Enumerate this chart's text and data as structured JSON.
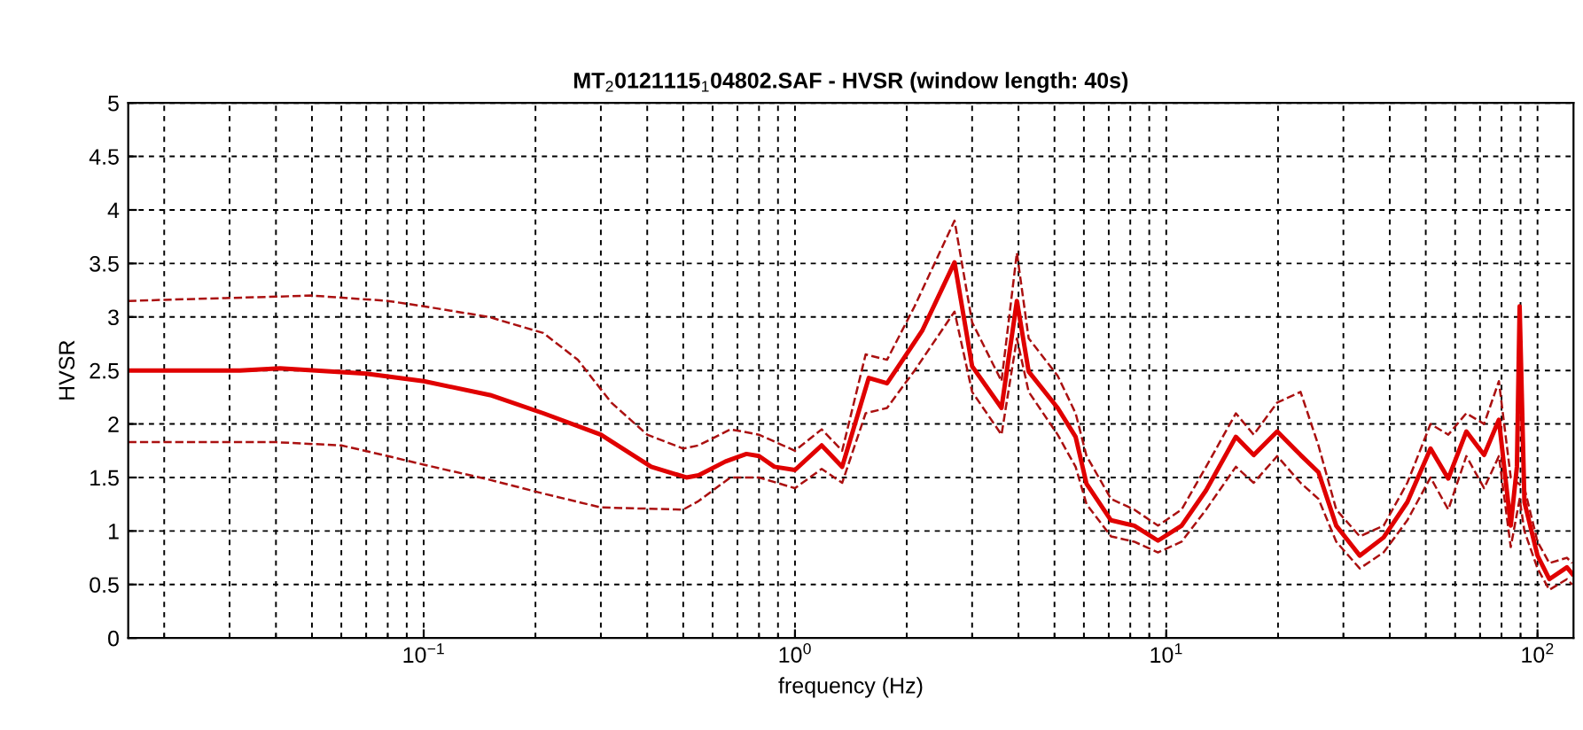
{
  "chart_data": {
    "type": "line",
    "title": "MT$_{2}$0121115$_{1}$04802.SAF - HVSR (window length: 40s)",
    "xlabel": "frequency (Hz)",
    "ylabel": "HVSR",
    "log": "x",
    "xlim": [
      0.016,
      125
    ],
    "xticks": [
      {
        "value": 0.1,
        "label": "10$^{−1}$"
      },
      {
        "value": 1,
        "label": "10$^{0}$"
      },
      {
        "value": 10,
        "label": "10$^{1}$"
      },
      {
        "value": 100,
        "label": "10$^{2}$"
      }
    ],
    "ylim": [
      0,
      5
    ],
    "yticks": [
      0,
      0.5,
      1,
      1.5,
      2,
      2.5,
      3,
      3.5,
      4,
      4.5,
      5
    ],
    "grid": true,
    "marker": "none",
    "series": [
      {
        "color": "#aa1010",
        "line_style": "dashed",
        "x": [
          0.016,
          0.05,
          0.08,
          0.1,
          0.15,
          0.21,
          0.26,
          0.32,
          0.4,
          0.5,
          0.55,
          0.67,
          0.8,
          1.0,
          1.18,
          1.34,
          1.55,
          1.77,
          2.1,
          2.69,
          3.0,
          3.6,
          3.96,
          4.26,
          5.1,
          5.7,
          6.1,
          7.1,
          8.2,
          9.5,
          11,
          12.8,
          15.4,
          17.2,
          19.9,
          23,
          25.7,
          28.7,
          33.2,
          38.5,
          44.6,
          51.5,
          57.5,
          64.3,
          71.8,
          78.7,
          84.7,
          92.2,
          100,
          107.6,
          120,
          124
        ],
        "values": [
          3.15,
          3.2,
          3.15,
          3.1,
          3.0,
          2.85,
          2.6,
          2.2,
          1.9,
          1.77,
          1.8,
          1.95,
          1.9,
          1.75,
          1.95,
          1.75,
          2.65,
          2.6,
          3.1,
          3.9,
          2.95,
          2.4,
          3.6,
          2.8,
          2.45,
          2.1,
          1.7,
          1.3,
          1.2,
          1.05,
          1.2,
          1.6,
          2.1,
          1.9,
          2.2,
          2.3,
          1.8,
          1.2,
          0.95,
          1.05,
          1.45,
          2.0,
          1.9,
          2.1,
          2.0,
          2.4,
          1.5,
          1.4,
          0.9,
          0.7,
          0.75,
          0.7
        ]
      },
      {
        "color": "#aa1010",
        "line_style": "dashed",
        "x": [
          0.016,
          0.04,
          0.06,
          0.08,
          0.1,
          0.15,
          0.21,
          0.3,
          0.5,
          0.55,
          0.67,
          0.8,
          1.0,
          1.18,
          1.34,
          1.55,
          1.77,
          2.1,
          2.69,
          3.0,
          3.6,
          3.96,
          4.26,
          5.1,
          5.7,
          6.1,
          7.1,
          8.2,
          9.5,
          11,
          12.8,
          15.4,
          17.2,
          19.9,
          23,
          25.7,
          28.7,
          33.2,
          38.5,
          44.6,
          51.5,
          57.5,
          64.3,
          71.8,
          78.7,
          84.7,
          89.5,
          92.2,
          100,
          107.6,
          120,
          124
        ],
        "values": [
          1.83,
          1.83,
          1.8,
          1.7,
          1.62,
          1.48,
          1.35,
          1.22,
          1.2,
          1.28,
          1.5,
          1.5,
          1.4,
          1.58,
          1.45,
          2.1,
          2.15,
          2.5,
          3.05,
          2.3,
          1.9,
          2.8,
          2.3,
          1.9,
          1.6,
          1.25,
          0.95,
          0.9,
          0.8,
          0.9,
          1.2,
          1.6,
          1.45,
          1.7,
          1.45,
          1.3,
          0.9,
          0.65,
          0.8,
          1.1,
          1.5,
          1.2,
          1.7,
          1.4,
          1.7,
          0.85,
          1.3,
          1.0,
          0.65,
          0.45,
          0.55,
          0.5
        ]
      },
      {
        "color": "#e00000",
        "line_style": "solid",
        "x": [
          0.016,
          0.032,
          0.041,
          0.07,
          0.1,
          0.151,
          0.21,
          0.3,
          0.41,
          0.51,
          0.55,
          0.65,
          0.74,
          0.8,
          0.88,
          1.0,
          1.18,
          1.34,
          1.58,
          1.77,
          2.2,
          2.69,
          3.0,
          3.6,
          3.96,
          4.26,
          5.1,
          5.7,
          6.1,
          7.1,
          8.2,
          9.5,
          11.0,
          12.8,
          15.4,
          17.2,
          19.9,
          23,
          25.7,
          28.7,
          33.2,
          38.5,
          44.6,
          51.5,
          57.5,
          64.3,
          71.8,
          78.7,
          84.7,
          88,
          89.5,
          92.2,
          100,
          107.6,
          120,
          124
        ],
        "values": [
          2.5,
          2.5,
          2.52,
          2.47,
          2.4,
          2.27,
          2.1,
          1.9,
          1.6,
          1.5,
          1.52,
          1.65,
          1.72,
          1.7,
          1.6,
          1.57,
          1.8,
          1.6,
          2.43,
          2.38,
          2.87,
          3.51,
          2.54,
          2.15,
          3.15,
          2.49,
          2.15,
          1.88,
          1.44,
          1.1,
          1.05,
          0.91,
          1.05,
          1.38,
          1.88,
          1.71,
          1.93,
          1.71,
          1.55,
          1.05,
          0.77,
          0.94,
          1.27,
          1.77,
          1.49,
          1.93,
          1.71,
          2.04,
          1.05,
          1.6,
          3.1,
          1.27,
          0.77,
          0.55,
          0.66,
          0.6
        ]
      }
    ]
  }
}
